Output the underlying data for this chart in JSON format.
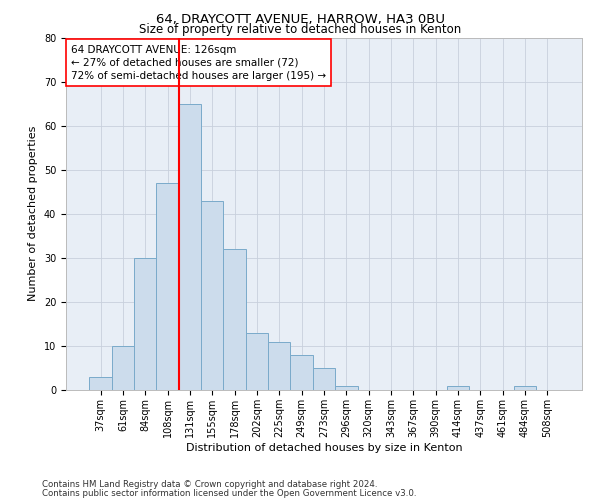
{
  "title1": "64, DRAYCOTT AVENUE, HARROW, HA3 0BU",
  "title2": "Size of property relative to detached houses in Kenton",
  "xlabel": "Distribution of detached houses by size in Kenton",
  "ylabel": "Number of detached properties",
  "categories": [
    "37sqm",
    "61sqm",
    "84sqm",
    "108sqm",
    "131sqm",
    "155sqm",
    "178sqm",
    "202sqm",
    "225sqm",
    "249sqm",
    "273sqm",
    "296sqm",
    "320sqm",
    "343sqm",
    "367sqm",
    "390sqm",
    "414sqm",
    "437sqm",
    "461sqm",
    "484sqm",
    "508sqm"
  ],
  "values": [
    3,
    10,
    30,
    47,
    65,
    43,
    32,
    13,
    11,
    8,
    5,
    1,
    0,
    0,
    0,
    0,
    1,
    0,
    0,
    1,
    0
  ],
  "bar_color": "#ccdcec",
  "bar_edge_color": "#7aaaca",
  "vline_color": "red",
  "vline_x_index": 4,
  "annotation_text": "64 DRAYCOTT AVENUE: 126sqm\n← 27% of detached houses are smaller (72)\n72% of semi-detached houses are larger (195) →",
  "annotation_box_color": "white",
  "annotation_box_edge_color": "red",
  "ylim": [
    0,
    80
  ],
  "yticks": [
    0,
    10,
    20,
    30,
    40,
    50,
    60,
    70,
    80
  ],
  "grid_color": "#c8d0dc",
  "background_color": "#e8eef6",
  "footer1": "Contains HM Land Registry data © Crown copyright and database right 2024.",
  "footer2": "Contains public sector information licensed under the Open Government Licence v3.0.",
  "title1_fontsize": 9.5,
  "title2_fontsize": 8.5,
  "xlabel_fontsize": 8,
  "ylabel_fontsize": 8,
  "tick_fontsize": 7,
  "annotation_fontsize": 7.5,
  "footer_fontsize": 6.2
}
